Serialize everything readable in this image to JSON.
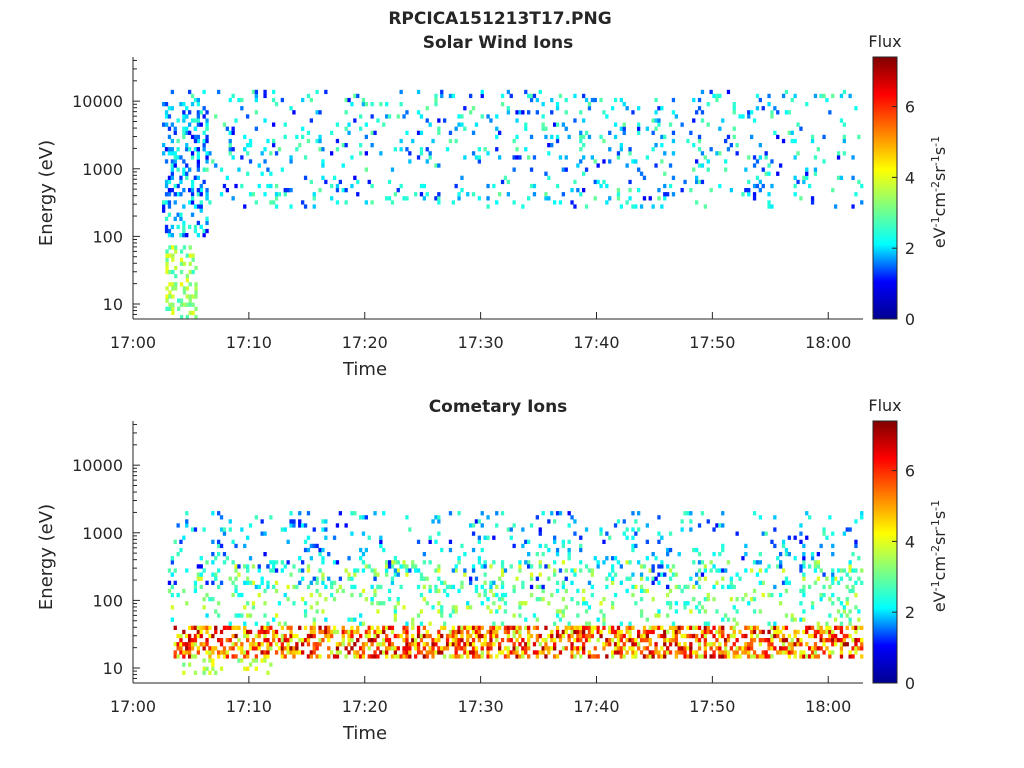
{
  "figure_title": "RPCICA151213T17.PNG",
  "colorbar_label_parts": [
    "eV",
    "-1",
    "cm",
    "-2",
    "sr",
    "-1",
    "s",
    "-1"
  ],
  "colorbar_title": "Flux",
  "colormap": [
    "#00008f",
    "#0000ff",
    "#00ffff",
    "#80ff80",
    "#ffff00",
    "#ff8000",
    "#ff0000",
    "#800000"
  ],
  "chart_data": [
    {
      "type": "heatmap",
      "title": "Solar Wind Ions",
      "xlabel": "Time",
      "ylabel": "Energy (eV)",
      "x_ticks": [
        "17:00",
        "17:10",
        "17:20",
        "17:30",
        "17:40",
        "17:50",
        "18:00"
      ],
      "y_ticks": [
        "10",
        "100",
        "1000",
        "10000"
      ],
      "y_scale": "log",
      "y_range_ev": [
        6,
        45000
      ],
      "x_range_min": [
        0,
        63
      ],
      "colorbar_ticks": [
        "0",
        "2",
        "4",
        "6"
      ],
      "colorbar_range": [
        0,
        7.4
      ],
      "grid": false,
      "populations": [
        {
          "t_start": 2.5,
          "t_end": 63,
          "e_min": 270,
          "e_max": 15000,
          "flux_min": 1.0,
          "flux_max": 3.0,
          "density": 0.1
        },
        {
          "t_start": 2.5,
          "t_end": 6.5,
          "e_min": 100,
          "e_max": 10000,
          "flux_min": 1.0,
          "flux_max": 2.6,
          "density": 0.3
        },
        {
          "t_start": 2.8,
          "t_end": 5.5,
          "e_min": 6,
          "e_max": 70,
          "flux_min": 2.5,
          "flux_max": 4.2,
          "density": 0.35
        }
      ]
    },
    {
      "type": "heatmap",
      "title": "Cometary Ions",
      "xlabel": "Time",
      "ylabel": "Energy (eV)",
      "x_ticks": [
        "17:00",
        "17:10",
        "17:20",
        "17:30",
        "17:40",
        "17:50",
        "18:00"
      ],
      "y_ticks": [
        "10",
        "100",
        "1000",
        "10000"
      ],
      "y_scale": "log",
      "y_range_ev": [
        6,
        45000
      ],
      "x_range_min": [
        0,
        63
      ],
      "colorbar_ticks": [
        "0",
        "2",
        "4",
        "6"
      ],
      "colorbar_range": [
        0,
        7.4
      ],
      "grid": false,
      "populations": [
        {
          "t_start": 3.5,
          "t_end": 63,
          "e_min": 14,
          "e_max": 45,
          "flux_min": 3.5,
          "flux_max": 7.2,
          "density": 0.55
        },
        {
          "t_start": 3.0,
          "t_end": 63,
          "e_min": 40,
          "e_max": 400,
          "flux_min": 2.0,
          "flux_max": 4.0,
          "density": 0.14
        },
        {
          "t_start": 3.0,
          "t_end": 63,
          "e_min": 150,
          "e_max": 2000,
          "flux_min": 1.0,
          "flux_max": 2.8,
          "density": 0.1
        },
        {
          "t_start": 4.0,
          "t_end": 12,
          "e_min": 8,
          "e_max": 14,
          "flux_min": 3.0,
          "flux_max": 4.5,
          "density": 0.2
        }
      ]
    }
  ]
}
